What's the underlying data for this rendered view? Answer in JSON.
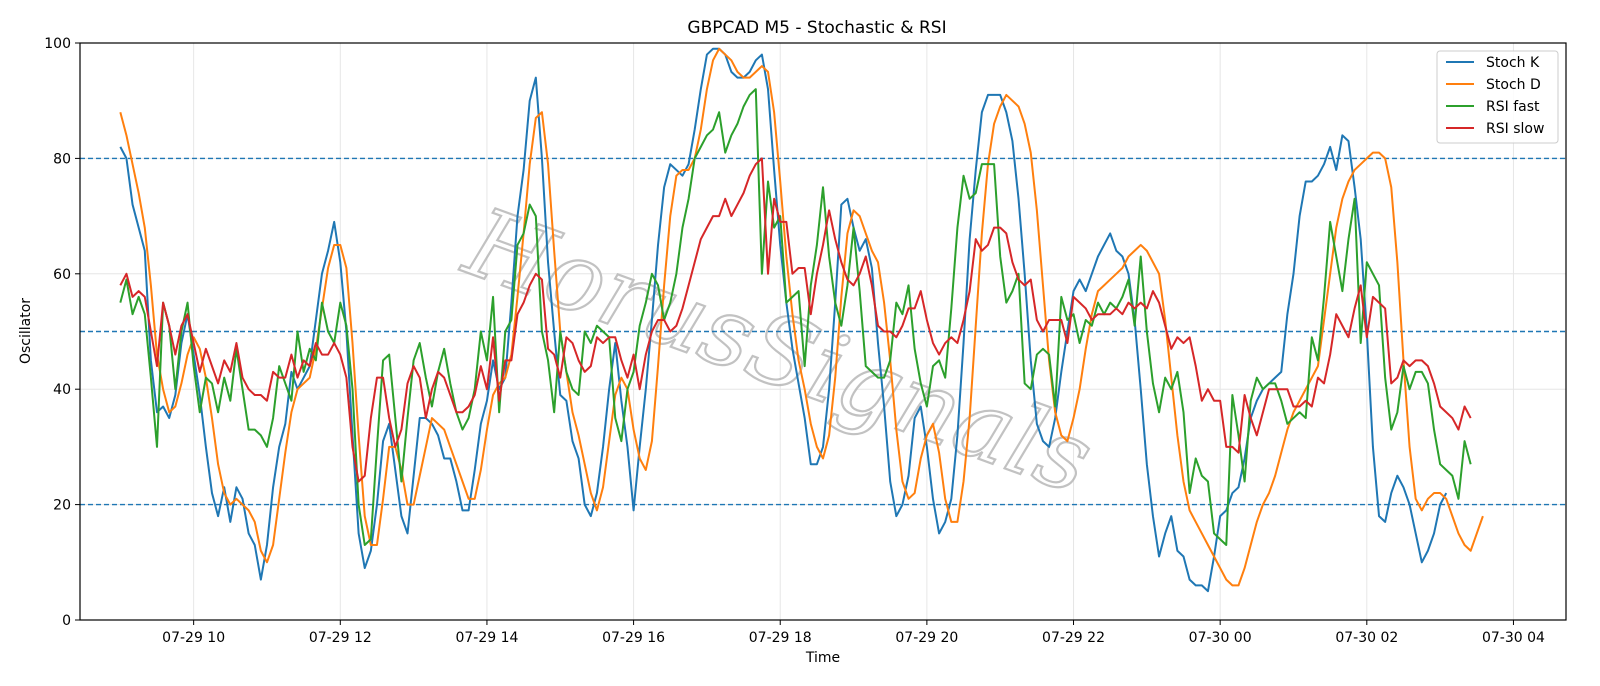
{
  "chart_data": {
    "type": "line",
    "title": "GBPCAD M5 - Stochastic & RSI",
    "xlabel": "Time",
    "ylabel": "Oscillator",
    "ylim": [
      0,
      100
    ],
    "xlim": [
      "2024-07-29 08:27",
      "2024-07-30 04:43"
    ],
    "yticks": [
      0,
      20,
      40,
      60,
      80,
      100
    ],
    "xticks": [
      "07-29 10",
      "07-29 12",
      "07-29 14",
      "07-29 16",
      "07-29 18",
      "07-29 20",
      "07-29 22",
      "07-30 00",
      "07-30 02",
      "07-30 04"
    ],
    "xtick_times": [
      "2024-07-29 10:00",
      "2024-07-29 12:00",
      "2024-07-29 14:00",
      "2024-07-29 16:00",
      "2024-07-29 18:00",
      "2024-07-29 20:00",
      "2024-07-29 22:00",
      "2024-07-30 00:00",
      "2024-07-30 02:00",
      "2024-07-30 04:00"
    ],
    "x_start": "2024-07-29 09:00",
    "x_interval_minutes": 5,
    "reference_lines": [
      80,
      50,
      20
    ],
    "reference_color": "#1f77b4",
    "grid": true,
    "legend_position": "top-right",
    "watermark": "HorusSignals",
    "series": [
      {
        "name": "Stoch K",
        "color": "#1f77b4",
        "values": [
          82,
          80,
          72,
          68,
          64,
          45,
          36,
          37,
          35,
          39,
          48,
          53,
          46,
          39,
          30,
          22,
          18,
          23,
          17,
          23,
          21,
          15,
          13,
          7,
          13,
          23,
          30,
          34,
          43,
          40,
          42,
          44,
          52,
          60,
          64,
          69,
          62,
          50,
          32,
          15,
          9,
          12,
          20,
          31,
          34,
          26,
          18,
          15,
          25,
          35,
          35,
          34,
          32,
          28,
          28,
          24,
          19,
          19,
          26,
          34,
          38,
          45,
          40,
          42,
          55,
          70,
          78,
          90,
          94,
          80,
          62,
          50,
          39,
          38,
          31,
          28,
          20,
          18,
          22,
          30,
          40,
          48,
          38,
          30,
          19,
          30,
          40,
          52,
          65,
          75,
          79,
          78,
          77,
          79,
          85,
          92,
          98,
          99,
          99,
          98,
          95,
          94,
          94,
          95,
          97,
          98,
          92,
          78,
          65,
          55,
          47,
          41,
          35,
          27,
          27,
          30,
          40,
          55,
          72,
          73,
          68,
          64,
          66,
          61,
          48,
          37,
          24,
          18,
          20,
          25,
          35,
          37,
          30,
          21,
          15,
          17,
          21,
          32,
          48,
          66,
          78,
          88,
          91,
          91,
          91,
          88,
          83,
          73,
          60,
          45,
          34,
          31,
          30,
          35,
          43,
          50,
          57,
          59,
          57,
          60,
          63,
          65,
          67,
          64,
          63,
          60,
          52,
          40,
          27,
          18,
          11,
          15,
          18,
          12,
          11,
          7,
          6,
          6,
          5,
          11,
          18,
          19,
          22,
          23,
          28,
          35,
          38,
          40,
          41,
          42,
          43,
          53,
          60,
          70,
          76,
          76,
          77,
          79,
          82,
          78,
          84,
          83,
          75,
          66,
          50,
          30,
          18,
          17,
          22,
          25,
          23,
          20,
          15,
          10,
          12,
          15,
          20,
          22
        ]
      },
      {
        "name": "Stoch D",
        "color": "#ff7f0e",
        "values": [
          88,
          84,
          79,
          74,
          68,
          58,
          46,
          40,
          36,
          37,
          41,
          46,
          49,
          47,
          42,
          35,
          27,
          22,
          20,
          21,
          20,
          19,
          17,
          12,
          10,
          13,
          21,
          29,
          36,
          40,
          41,
          42,
          47,
          54,
          61,
          65,
          65,
          61,
          48,
          32,
          18,
          13,
          13,
          21,
          30,
          30,
          26,
          20,
          20,
          25,
          30,
          35,
          34,
          33,
          30,
          27,
          24,
          21,
          21,
          26,
          33,
          39,
          41,
          42,
          46,
          56,
          67,
          79,
          87,
          88,
          79,
          64,
          50,
          43,
          36,
          32,
          27,
          22,
          19,
          23,
          31,
          39,
          42,
          40,
          33,
          28,
          26,
          31,
          44,
          58,
          70,
          77,
          78,
          78,
          80,
          85,
          92,
          97,
          99,
          98,
          97,
          95,
          94,
          94,
          95,
          96,
          95,
          88,
          76,
          63,
          53,
          45,
          40,
          34,
          30,
          28,
          32,
          42,
          56,
          67,
          71,
          70,
          67,
          64,
          62,
          55,
          45,
          33,
          24,
          21,
          22,
          28,
          32,
          34,
          29,
          21,
          17,
          17,
          24,
          35,
          51,
          67,
          79,
          86,
          89,
          91,
          90,
          89,
          86,
          81,
          71,
          58,
          45,
          36,
          32,
          31,
          35,
          40,
          47,
          53,
          57,
          58,
          59,
          60,
          61,
          63,
          64,
          65,
          64,
          62,
          60,
          52,
          42,
          32,
          24,
          19,
          17,
          15,
          13,
          11,
          9,
          7,
          6,
          6,
          9,
          13,
          17,
          20,
          22,
          25,
          29,
          33,
          36,
          38,
          40,
          42,
          44,
          52,
          60,
          68,
          73,
          76,
          78,
          79,
          80,
          81,
          81,
          80,
          75,
          62,
          45,
          30,
          21,
          19,
          21,
          22,
          22,
          21,
          18,
          15,
          13,
          12,
          15,
          18
        ]
      },
      {
        "name": "RSI fast",
        "color": "#2ca02c",
        "values": [
          55,
          59,
          53,
          56,
          53,
          42,
          30,
          55,
          51,
          40,
          50,
          55,
          44,
          36,
          42,
          41,
          36,
          42,
          38,
          47,
          40,
          33,
          33,
          32,
          30,
          35,
          44,
          41,
          38,
          50,
          43,
          47,
          45,
          55,
          50,
          48,
          55,
          51,
          40,
          20,
          13,
          14,
          30,
          45,
          46,
          35,
          24,
          35,
          45,
          48,
          42,
          37,
          43,
          47,
          41,
          36,
          33,
          35,
          40,
          50,
          45,
          56,
          36,
          50,
          52,
          65,
          67,
          72,
          70,
          50,
          45,
          36,
          50,
          43,
          40,
          39,
          50,
          48,
          51,
          50,
          49,
          35,
          31,
          40,
          43,
          51,
          55,
          60,
          58,
          52,
          55,
          60,
          68,
          73,
          80,
          82,
          84,
          85,
          88,
          81,
          84,
          86,
          89,
          91,
          92,
          60,
          76,
          68,
          70,
          55,
          56,
          57,
          44,
          58,
          65,
          75,
          63,
          55,
          51,
          58,
          68,
          57,
          44,
          43,
          42,
          42,
          45,
          55,
          53,
          58,
          47,
          41,
          37,
          44,
          45,
          42,
          54,
          68,
          77,
          73,
          74,
          79,
          79,
          79,
          63,
          55,
          57,
          60,
          41,
          40,
          46,
          47,
          46,
          37,
          56,
          52,
          53,
          48,
          52,
          51,
          55,
          53,
          55,
          54,
          56,
          59,
          51,
          63,
          50,
          41,
          36,
          42,
          40,
          43,
          36,
          22,
          28,
          25,
          24,
          15,
          14,
          13,
          39,
          32,
          24,
          38,
          42,
          40,
          41,
          41,
          38,
          34,
          35,
          36,
          35,
          49,
          45,
          56,
          69,
          63,
          57,
          66,
          73,
          48,
          62,
          60,
          58,
          42,
          33,
          36,
          44,
          40,
          43,
          43,
          41,
          33,
          27,
          26,
          25,
          21,
          31,
          27
        ]
      },
      {
        "name": "RSI slow",
        "color": "#d62728",
        "values": [
          58,
          60,
          56,
          57,
          56,
          50,
          44,
          55,
          51,
          46,
          51,
          53,
          48,
          43,
          47,
          44,
          41,
          45,
          43,
          48,
          42,
          40,
          39,
          39,
          38,
          43,
          42,
          42,
          46,
          42,
          45,
          44,
          48,
          46,
          46,
          48,
          46,
          42,
          30,
          24,
          25,
          35,
          42,
          42,
          35,
          30,
          33,
          41,
          44,
          42,
          35,
          40,
          43,
          42,
          39,
          36,
          36,
          37,
          39,
          44,
          40,
          49,
          38,
          45,
          45,
          53,
          55,
          58,
          60,
          59,
          47,
          46,
          42,
          49,
          48,
          45,
          43,
          44,
          49,
          48,
          49,
          49,
          45,
          42,
          46,
          40,
          46,
          50,
          52,
          52,
          50,
          51,
          54,
          58,
          62,
          66,
          68,
          70,
          70,
          73,
          70,
          72,
          74,
          77,
          79,
          80,
          60,
          73,
          69,
          69,
          60,
          61,
          61,
          53,
          60,
          65,
          71,
          66,
          62,
          59,
          58,
          60,
          63,
          58,
          51,
          50,
          50,
          49,
          51,
          54,
          54,
          57,
          52,
          48,
          46,
          48,
          49,
          48,
          52,
          57,
          66,
          64,
          65,
          68,
          68,
          67,
          62,
          59,
          58,
          59,
          52,
          50,
          52,
          52,
          52,
          48,
          56,
          55,
          54,
          52,
          53,
          53,
          53,
          54,
          53,
          55,
          54,
          55,
          54,
          57,
          55,
          51,
          47,
          49,
          48,
          49,
          44,
          38,
          40,
          38,
          38,
          30,
          30,
          29,
          39,
          35,
          32,
          36,
          40,
          40,
          40,
          40,
          37,
          37,
          38,
          37,
          42,
          41,
          46,
          53,
          51,
          49,
          54,
          58,
          49,
          56,
          55,
          54,
          41,
          42,
          45,
          44,
          45,
          45,
          44,
          41,
          37,
          36,
          35,
          33,
          37,
          35
        ]
      }
    ]
  }
}
